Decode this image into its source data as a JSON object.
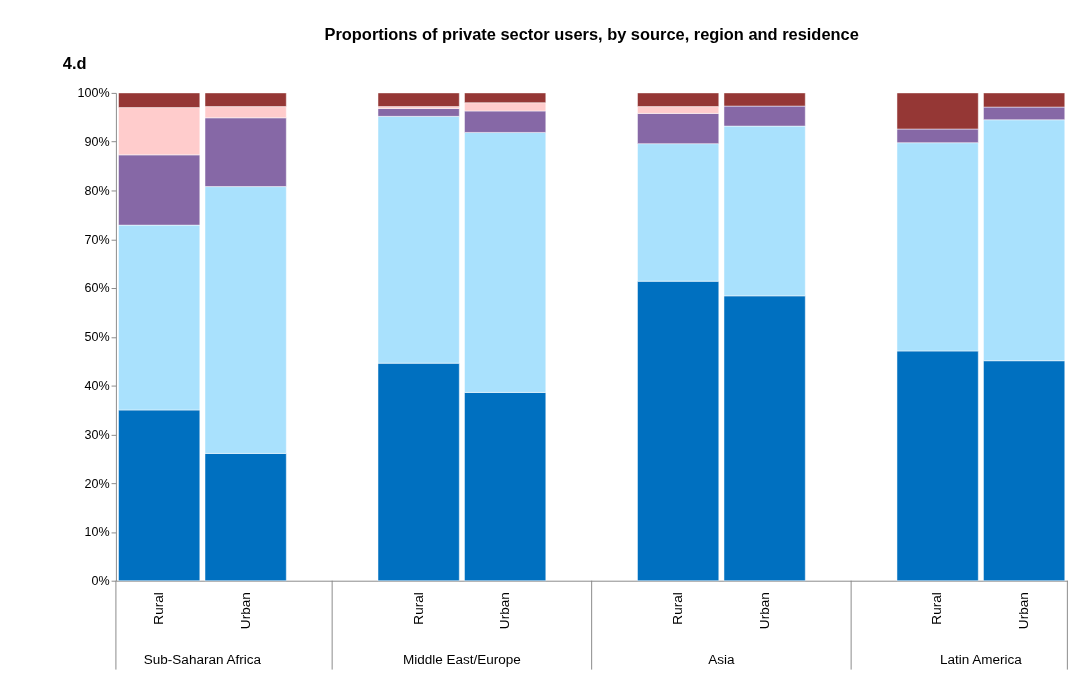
{
  "chart_data": {
    "type": "bar",
    "title": "Proportions of private sector users, by source, region and residence",
    "categories": [
      "Rural",
      "Urban",
      "Rural",
      "Urban",
      "Rural",
      "Urban",
      "Rural",
      "Urban"
    ],
    "annotations": [
      "4.d",
      "Sub-Saharan Africa",
      "Middle East/Europe",
      "Asia",
      "Latin America"
    ],
    "stacked": true,
    "legend": false,
    "grid": false,
    "ylim": [
      0,
      100
    ],
    "yticks": [
      {
        "value": 0,
        "label": "0%"
      },
      {
        "value": 10,
        "label": "10%"
      },
      {
        "value": 20,
        "label": "20%"
      },
      {
        "value": 30,
        "label": "30%"
      },
      {
        "value": 40,
        "label": "40%"
      },
      {
        "value": 50,
        "label": "50%"
      },
      {
        "value": 60,
        "label": "60%"
      },
      {
        "value": 70,
        "label": "70%"
      },
      {
        "value": 80,
        "label": "80%"
      },
      {
        "value": 90,
        "label": "90%"
      },
      {
        "value": 100,
        "label": "100%"
      }
    ],
    "series": [
      {
        "color": "#0070c0",
        "values": [
          35.0,
          26.1,
          44.6,
          38.6,
          61.4,
          58.4,
          47.1,
          45.1
        ]
      },
      {
        "color": "#a9e1fd",
        "values": [
          37.9,
          54.7,
          50.6,
          53.3,
          28.2,
          34.8,
          42.7,
          49.4
        ]
      },
      {
        "color": "#8668a6",
        "values": [
          14.4,
          14.1,
          1.6,
          4.4,
          6.2,
          4.1,
          2.8,
          2.6
        ]
      },
      {
        "color": "#ffcccc",
        "values": [
          9.7,
          2.3,
          0.4,
          1.7,
          1.4,
          null,
          null,
          null
        ]
      },
      {
        "color": "#953735",
        "values": [
          3.0,
          2.8,
          2.8,
          2.0,
          2.8,
          2.7,
          7.4,
          2.9
        ]
      }
    ]
  }
}
